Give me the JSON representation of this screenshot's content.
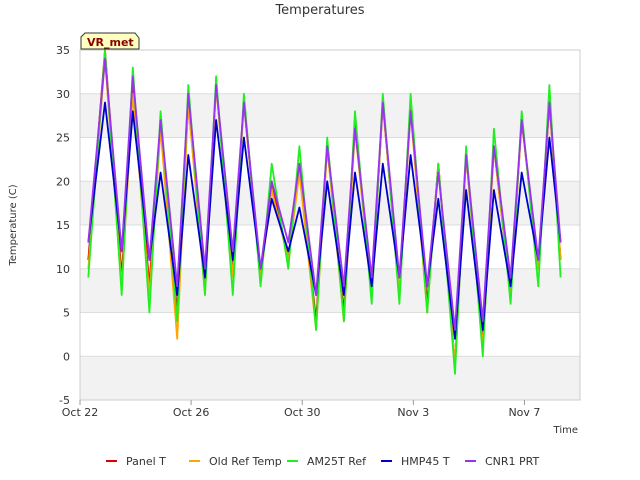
{
  "chart_data": {
    "type": "line",
    "title": "Temperatures",
    "xlabel": "Time",
    "ylabel": "Temperature (C)",
    "badge": "VR_met",
    "x_start": "Oct 22",
    "xlim_days": [
      0,
      18
    ],
    "ylim": [
      -5,
      35
    ],
    "yticks": [
      -5,
      0,
      5,
      10,
      15,
      20,
      25,
      30,
      35
    ],
    "xticks": [
      {
        "label": "Oct 22",
        "day": 0
      },
      {
        "label": "Oct 26",
        "day": 4
      },
      {
        "label": "Oct 30",
        "day": 8
      },
      {
        "label": "Nov 3",
        "day": 12
      },
      {
        "label": "Nov 7",
        "day": 16
      }
    ],
    "grid": true,
    "legend_position": "bottom",
    "daily_extremes": {
      "day": [
        0.3,
        0.9,
        1.9,
        2.9,
        3.9,
        4.9,
        5.9,
        6.9,
        7.9,
        8.9,
        9.9,
        10.9,
        11.9,
        12.9,
        13.9,
        14.9,
        15.9,
        16.9,
        17.3
      ],
      "panel_t": [
        11,
        35,
        31,
        27,
        29,
        31,
        29,
        20,
        22,
        24,
        27,
        29,
        29,
        22,
        23,
        24,
        27,
        29,
        11
      ],
      "old_ref_temp": [
        10,
        34,
        30,
        26,
        29,
        31,
        29,
        19,
        21,
        24,
        26,
        29,
        28,
        22,
        23,
        24,
        27,
        29,
        11
      ],
      "am25t_ref": [
        9,
        35,
        33,
        28,
        31,
        32,
        30,
        22,
        24,
        25,
        28,
        30,
        30,
        22,
        24,
        26,
        28,
        31,
        9
      ],
      "hmp45_t": [
        13,
        29,
        28,
        21,
        23,
        27,
        25,
        18,
        17,
        20,
        21,
        22,
        23,
        18,
        19,
        19,
        21,
        25,
        13
      ],
      "cnr1_prt": [
        13,
        34,
        32,
        27,
        30,
        31,
        29,
        20,
        22,
        24,
        26,
        29,
        28,
        21,
        23,
        24,
        27,
        29,
        13
      ]
    },
    "daily_minima": {
      "day": [
        1.5,
        2.5,
        3.5,
        4.5,
        5.5,
        6.5,
        7.5,
        8.5,
        9.5,
        10.5,
        11.5,
        12.5,
        13.5,
        14.5,
        15.5,
        16.5
      ],
      "panel_t": [
        9,
        8,
        5,
        8,
        10,
        9,
        11,
        4,
        5,
        7,
        7,
        6,
        -1,
        2,
        7,
        10
      ],
      "old_ref_temp": [
        8,
        7,
        2,
        7,
        9,
        9,
        11,
        3,
        4,
        7,
        7,
        5,
        -1,
        1,
        7,
        10
      ],
      "am25t_ref": [
        7,
        5,
        4,
        7,
        7,
        8,
        10,
        3,
        4,
        6,
        6,
        5,
        -2,
        0,
        6,
        8
      ],
      "hmp45_t": [
        12,
        11,
        7,
        9,
        11,
        10,
        12,
        7,
        7,
        8,
        9,
        8,
        2,
        3,
        8,
        11
      ],
      "cnr1_prt": [
        12,
        11,
        8,
        10,
        12,
        10,
        13,
        7,
        8,
        9,
        9,
        8,
        3,
        4,
        9,
        11
      ]
    },
    "series": [
      {
        "name": "Panel T",
        "key": "panel_t",
        "color": "#dd0000"
      },
      {
        "name": "Old Ref Temp",
        "key": "old_ref_temp",
        "color": "#ffa500"
      },
      {
        "name": "AM25T Ref",
        "key": "am25t_ref",
        "color": "#22ee22"
      },
      {
        "name": "HMP45 T",
        "key": "hmp45_t",
        "color": "#0000cc"
      },
      {
        "name": "CNR1 PRT",
        "key": "cnr1_prt",
        "color": "#9933ee"
      }
    ]
  }
}
